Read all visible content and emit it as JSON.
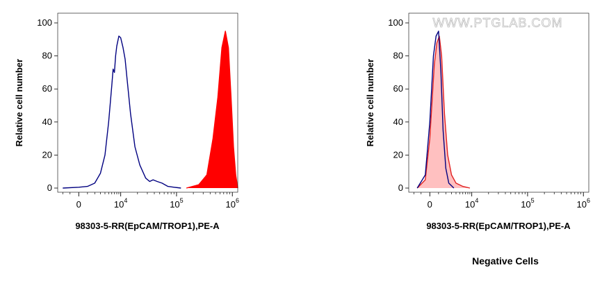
{
  "chart_data": [
    {
      "type": "area",
      "xlabel": "98303-5-RR(EpCAM/TROP1),PE-A",
      "ylabel": "Relative cell number",
      "xscale": "biexponential",
      "ylim": [
        0,
        100
      ],
      "x_ticks": [
        {
          "value": 0,
          "base": "0",
          "exp": ""
        },
        {
          "value": 10000,
          "base": "10",
          "exp": "4"
        },
        {
          "value": 100000,
          "base": "10",
          "exp": "5"
        },
        {
          "value": 1000000,
          "base": "10",
          "exp": "6"
        }
      ],
      "y_ticks": [
        0,
        20,
        40,
        60,
        80,
        100
      ],
      "grid": false,
      "series": [
        {
          "color": "#000080",
          "fill": "none",
          "points": [
            [
              -2000,
              0
            ],
            [
              0,
              0.5
            ],
            [
              1000,
              1
            ],
            [
              2000,
              3
            ],
            [
              3000,
              9
            ],
            [
              4000,
              20
            ],
            [
              5000,
              40
            ],
            [
              6000,
              62
            ],
            [
              6500,
              72
            ],
            [
              7000,
              70
            ],
            [
              7500,
              80
            ],
            [
              8000,
              86
            ],
            [
              9000,
              92
            ],
            [
              10000,
              91
            ],
            [
              11000,
              85
            ],
            [
              12000,
              78
            ],
            [
              13000,
              66
            ],
            [
              15000,
              45
            ],
            [
              18000,
              25
            ],
            [
              22000,
              14
            ],
            [
              28000,
              6
            ],
            [
              33000,
              4
            ],
            [
              38000,
              5
            ],
            [
              45000,
              4
            ],
            [
              55000,
              3
            ],
            [
              70000,
              1
            ],
            [
              90000,
              0.5
            ],
            [
              120000,
              0
            ]
          ]
        },
        {
          "color": "#ff0000",
          "fill": "#ff0000",
          "points": [
            [
              150000,
              0
            ],
            [
              250000,
              2
            ],
            [
              350000,
              8
            ],
            [
              450000,
              30
            ],
            [
              550000,
              55
            ],
            [
              650000,
              85
            ],
            [
              750000,
              95
            ],
            [
              850000,
              85
            ],
            [
              950000,
              55
            ],
            [
              1050000,
              25
            ],
            [
              1150000,
              8
            ],
            [
              1250000,
              0
            ]
          ]
        }
      ]
    },
    {
      "type": "area",
      "xlabel": "98303-5-RR(EpCAM/TROP1),PE-A",
      "ylabel": "Relative cell number",
      "xscale": "biexponential",
      "ylim": [
        0,
        100
      ],
      "x_ticks": [
        {
          "value": 0,
          "base": "0",
          "exp": ""
        },
        {
          "value": 10000,
          "base": "10",
          "exp": "4"
        },
        {
          "value": 100000,
          "base": "10",
          "exp": "5"
        },
        {
          "value": 1000000,
          "base": "10",
          "exp": "6"
        }
      ],
      "y_ticks": [
        0,
        20,
        40,
        60,
        80,
        100
      ],
      "grid": false,
      "series": [
        {
          "color": "#e02020",
          "fill": "#ffc0c0",
          "points": [
            [
              -1500,
              0
            ],
            [
              -500,
              5
            ],
            [
              0,
              30
            ],
            [
              500,
              75
            ],
            [
              800,
              88
            ],
            [
              1100,
              92
            ],
            [
              1400,
              80
            ],
            [
              1800,
              45
            ],
            [
              2300,
              20
            ],
            [
              3000,
              8
            ],
            [
              4000,
              3
            ],
            [
              6000,
              1
            ],
            [
              9000,
              0
            ]
          ]
        },
        {
          "color": "#000080",
          "fill": "none",
          "points": [
            [
              -1500,
              0
            ],
            [
              -500,
              8
            ],
            [
              0,
              40
            ],
            [
              400,
              80
            ],
            [
              700,
              92
            ],
            [
              1000,
              95
            ],
            [
              1300,
              70
            ],
            [
              1600,
              35
            ],
            [
              2000,
              12
            ],
            [
              2500,
              3
            ],
            [
              3500,
              0
            ]
          ]
        }
      ],
      "watermark": "WWW.PTGLAB.COM",
      "caption": "Negative Cells"
    }
  ]
}
